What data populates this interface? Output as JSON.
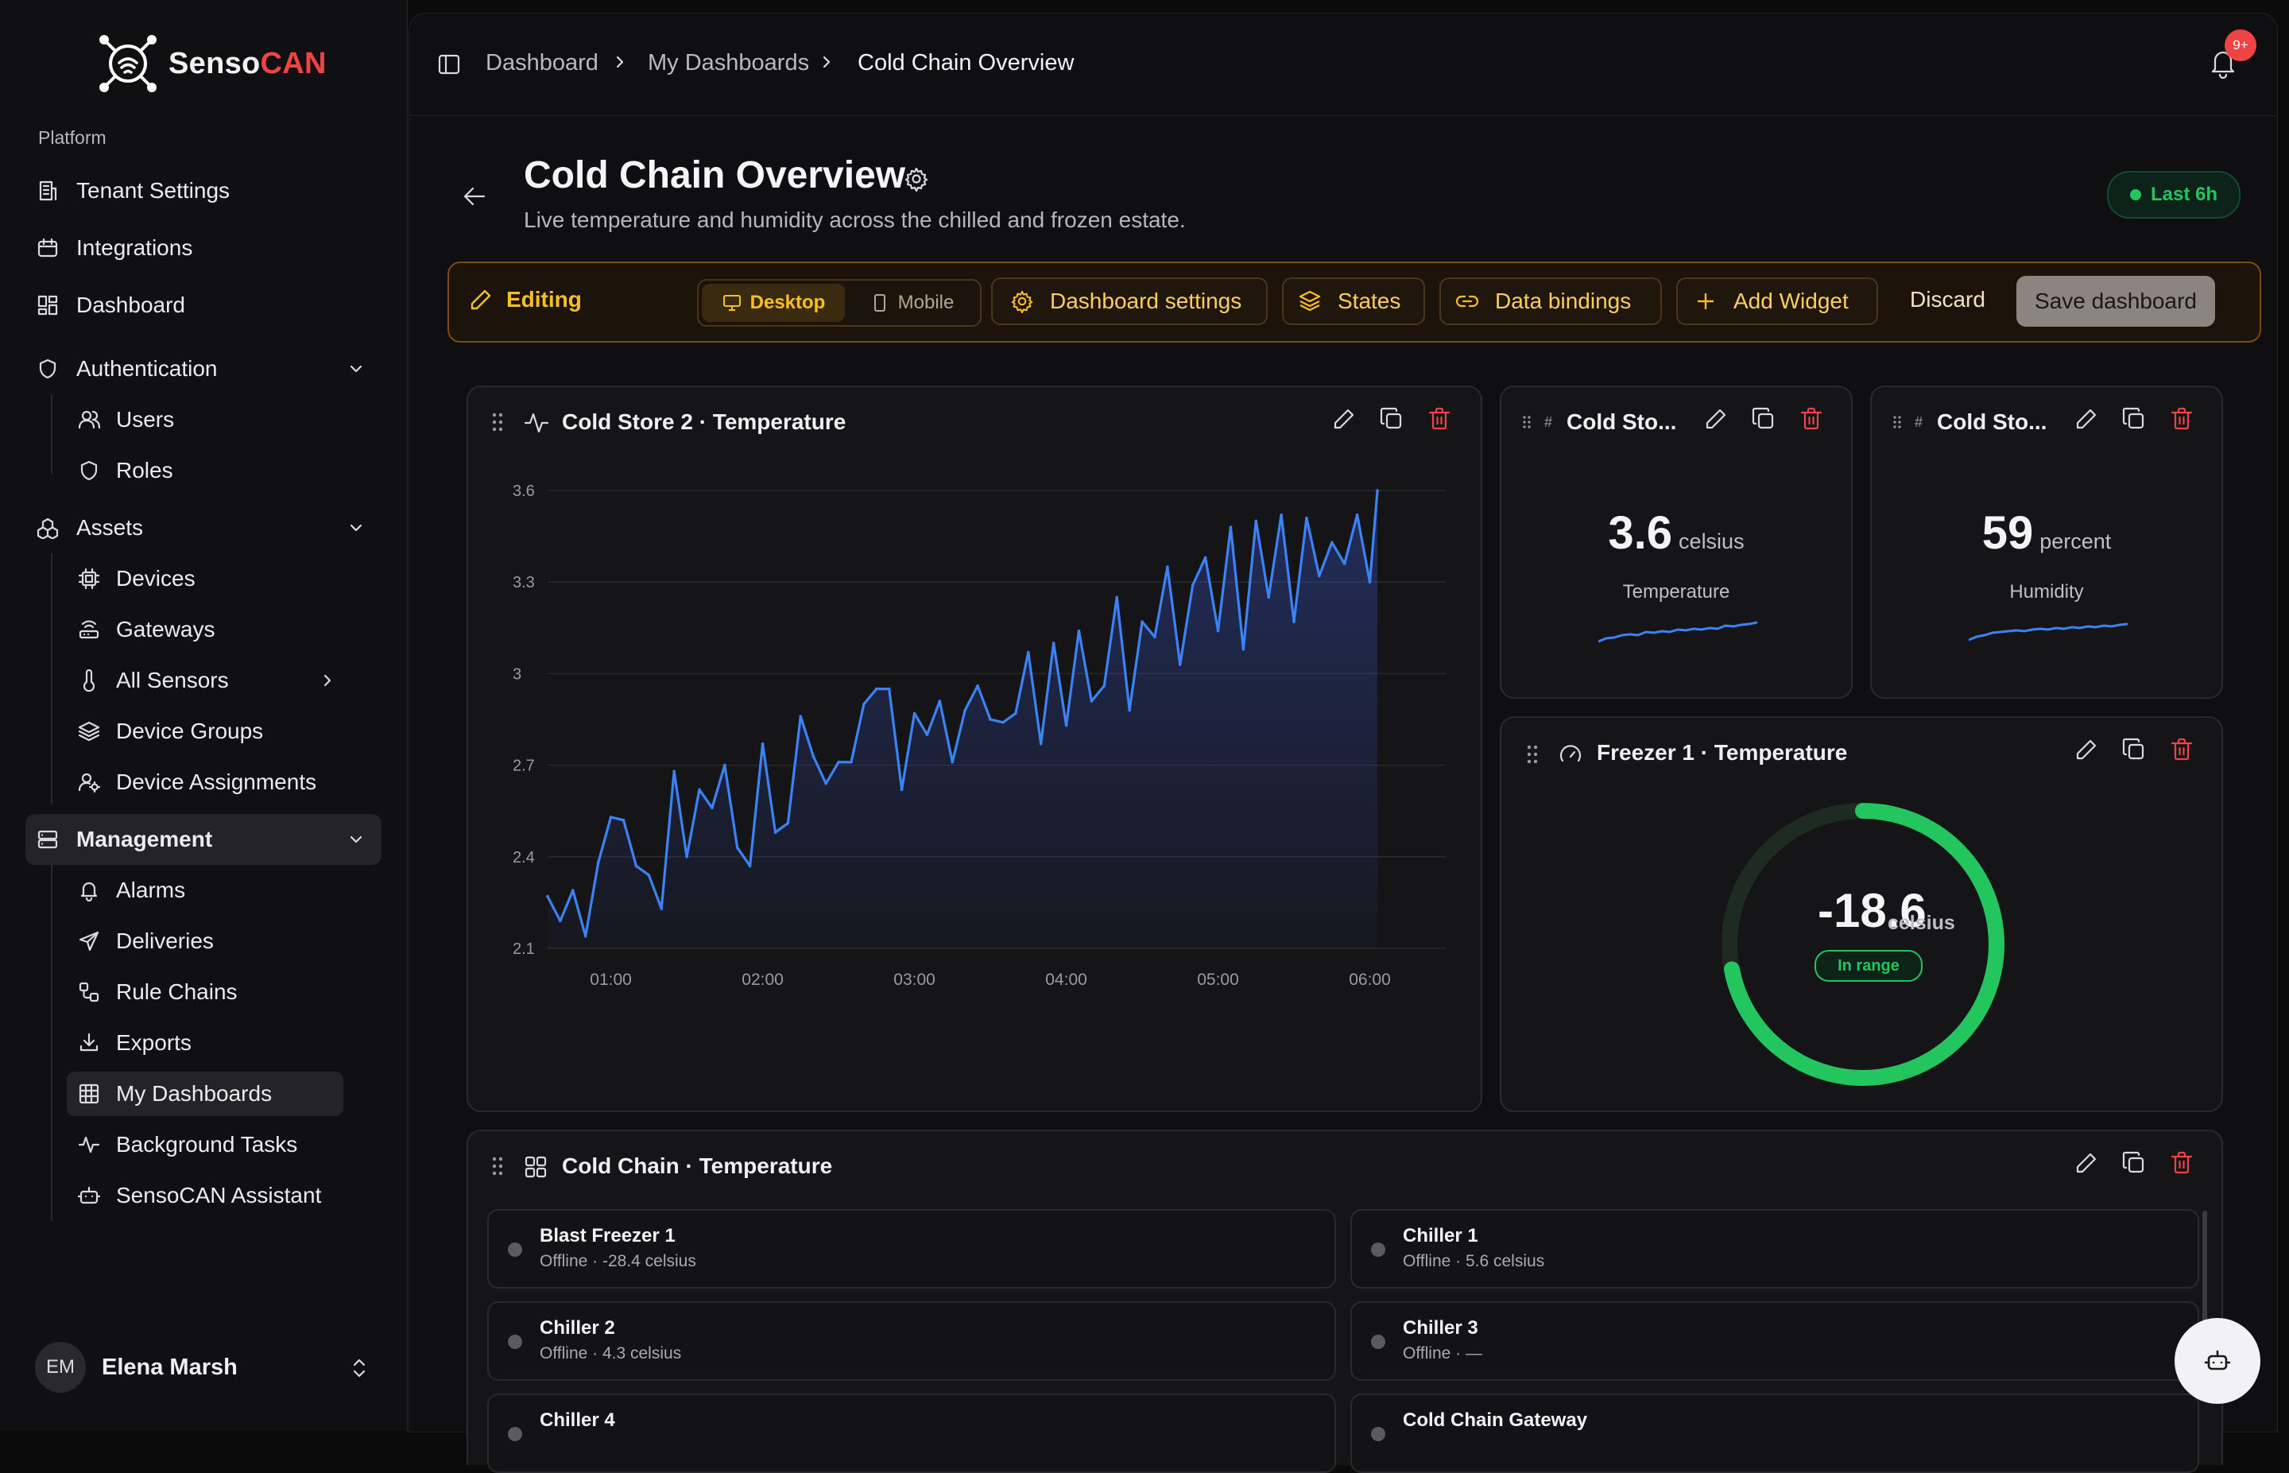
{
  "app": {
    "name_part1": "Senso",
    "name_part2": "CAN"
  },
  "sidebar": {
    "section_label": "Platform",
    "items": {
      "tenant_settings": "Tenant Settings",
      "integrations": "Integrations",
      "dashboard": "Dashboard",
      "authentication": "Authentication",
      "users": "Users",
      "roles": "Roles",
      "assets": "Assets",
      "devices": "Devices",
      "gateways": "Gateways",
      "all_sensors": "All Sensors",
      "device_groups": "Device Groups",
      "device_assignments": "Device Assignments",
      "management": "Management",
      "alarms": "Alarms",
      "deliveries": "Deliveries",
      "rule_chains": "Rule Chains",
      "exports": "Exports",
      "my_dashboards": "My Dashboards",
      "background_tasks": "Background Tasks",
      "assistant": "SensoCAN Assistant"
    },
    "user": {
      "initials": "EM",
      "name": "Elena Marsh"
    }
  },
  "topbar": {
    "breadcrumbs": [
      "Dashboard",
      "My Dashboards",
      "Cold Chain Overview"
    ],
    "notifications_badge": "9+"
  },
  "page": {
    "title": "Cold Chain Overview",
    "subtitle": "Live temperature and humidity across the chilled and frozen estate.",
    "range_label": "Last 6h"
  },
  "editbar": {
    "editing_label": "Editing",
    "desktop_label": "Desktop",
    "mobile_label": "Mobile",
    "dashboard_settings": "Dashboard settings",
    "states": "States",
    "data_bindings": "Data bindings",
    "add_widget": "Add Widget",
    "discard": "Discard",
    "save": "Save dashboard"
  },
  "widgets": {
    "line": {
      "title": "Cold Store 2 · Temperature"
    },
    "mini1": {
      "title": "Cold Sto...",
      "value": "3.6",
      "unit": "celsius",
      "label": "Temperature"
    },
    "mini2": {
      "title": "Cold Sto...",
      "value": "59",
      "unit": "percent",
      "label": "Humidity"
    },
    "gauge": {
      "title": "Freezer 1 · Temperature",
      "value": "-18.6",
      "unit": "celsius",
      "status": "In range",
      "fill_fraction": 0.72
    },
    "list": {
      "title": "Cold Chain · Temperature",
      "tiles": [
        {
          "name": "Blast Freezer 1",
          "sub": "Offline · -28.4 celsius"
        },
        {
          "name": "Chiller 1",
          "sub": "Offline · 5.6 celsius"
        },
        {
          "name": "Chiller 2",
          "sub": "Offline · 4.3 celsius"
        },
        {
          "name": "Chiller 3",
          "sub": "Offline · —"
        },
        {
          "name": "Chiller 4",
          "sub": ""
        },
        {
          "name": "Cold Chain Gateway",
          "sub": ""
        }
      ]
    }
  },
  "chart_data": {
    "type": "line",
    "title": "",
    "xlabel": "",
    "ylabel": "",
    "xlim": [
      "00:35",
      "06:30"
    ],
    "ylim": [
      2.1,
      3.6
    ],
    "yticks": [
      2.1,
      2.4,
      2.7,
      3,
      3.3,
      3.6
    ],
    "ytick_labels": [
      "2.1",
      "2.4",
      "2.7",
      "3",
      "3.3",
      "3.6"
    ],
    "xticks": [
      "01:00",
      "02:00",
      "03:00",
      "04:00",
      "05:00",
      "06:00"
    ],
    "grid": true,
    "series": [
      {
        "name": "",
        "x": [
          "00:35",
          "00:40",
          "00:45",
          "00:50",
          "00:55",
          "01:00",
          "01:05",
          "01:10",
          "01:15",
          "01:20",
          "01:25",
          "01:30",
          "01:35",
          "01:40",
          "01:45",
          "01:50",
          "01:55",
          "02:00",
          "02:05",
          "02:10",
          "02:15",
          "02:20",
          "02:25",
          "02:30",
          "02:35",
          "02:40",
          "02:45",
          "02:50",
          "02:55",
          "03:00",
          "03:05",
          "03:10",
          "03:15",
          "03:20",
          "03:25",
          "03:30",
          "03:35",
          "03:40",
          "03:45",
          "03:50",
          "03:55",
          "04:00",
          "04:05",
          "04:10",
          "04:15",
          "04:20",
          "04:25",
          "04:30",
          "04:35",
          "04:40",
          "04:45",
          "04:50",
          "04:55",
          "05:00",
          "05:05",
          "05:10",
          "05:15",
          "05:20",
          "05:25",
          "05:30",
          "05:35",
          "05:40",
          "05:45",
          "05:50",
          "05:55",
          "06:00",
          "06:03"
        ],
        "values": [
          2.27,
          2.19,
          2.29,
          2.14,
          2.38,
          2.53,
          2.52,
          2.37,
          2.34,
          2.23,
          2.68,
          2.4,
          2.62,
          2.56,
          2.7,
          2.43,
          2.37,
          2.77,
          2.48,
          2.51,
          2.86,
          2.73,
          2.64,
          2.71,
          2.71,
          2.9,
          2.95,
          2.95,
          2.62,
          2.87,
          2.8,
          2.91,
          2.71,
          2.88,
          2.96,
          2.85,
          2.84,
          2.87,
          3.07,
          2.77,
          3.1,
          2.83,
          3.14,
          2.91,
          2.96,
          3.25,
          2.88,
          3.17,
          3.12,
          3.35,
          3.03,
          3.29,
          3.38,
          3.14,
          3.48,
          3.08,
          3.5,
          3.25,
          3.52,
          3.17,
          3.51,
          3.32,
          3.43,
          3.36,
          3.52,
          3.3,
          3.6
        ]
      }
    ]
  }
}
